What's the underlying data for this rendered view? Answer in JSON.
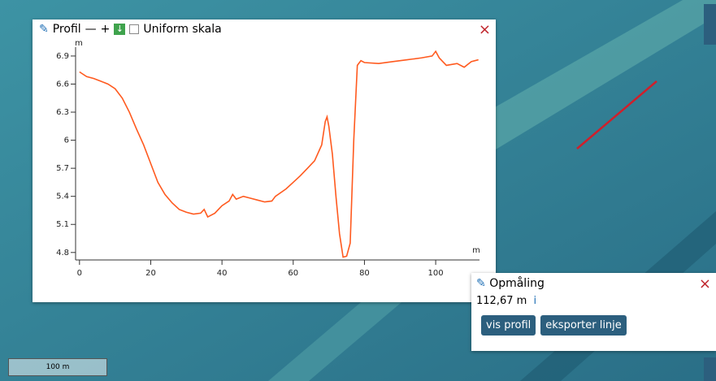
{
  "profile_panel": {
    "title": "Profil",
    "minus": "—",
    "plus": "+",
    "checkbox_label": "Uniform skala",
    "close": "×"
  },
  "chart_data": {
    "type": "line",
    "x_label": "m",
    "y_label": "m",
    "xlim": [
      -1.1,
      112.3
    ],
    "ylim": [
      4.72,
      6.995
    ],
    "xticks": [
      0,
      20,
      40,
      60,
      80,
      100
    ],
    "yticks": [
      4.8,
      5.1,
      5.4,
      5.7,
      6,
      6.3,
      6.6,
      6.9
    ],
    "series": [
      {
        "color": "#ff5a1f",
        "x": [
          0,
          2,
          4,
          6,
          8,
          10,
          12,
          14,
          16,
          18,
          20,
          22,
          24,
          26,
          28,
          30,
          32,
          34,
          35,
          36,
          38,
          40,
          42,
          43,
          44,
          46,
          48,
          50,
          52,
          54,
          55,
          58,
          60,
          62,
          64,
          66,
          68,
          69,
          69.5,
          70,
          71,
          72,
          73,
          74,
          75,
          76,
          77,
          78,
          79,
          80,
          84,
          88,
          92,
          96,
          99,
          100,
          101,
          103,
          106,
          108,
          110,
          112
        ],
        "values": [
          6.73,
          6.68,
          6.66,
          6.63,
          6.6,
          6.55,
          6.45,
          6.3,
          6.12,
          5.95,
          5.75,
          5.55,
          5.42,
          5.33,
          5.26,
          5.23,
          5.21,
          5.22,
          5.26,
          5.18,
          5.22,
          5.3,
          5.35,
          5.42,
          5.37,
          5.4,
          5.38,
          5.36,
          5.34,
          5.35,
          5.4,
          5.48,
          5.55,
          5.62,
          5.7,
          5.78,
          5.95,
          6.2,
          6.25,
          6.15,
          5.85,
          5.4,
          5,
          4.75,
          4.76,
          4.9,
          6,
          6.8,
          6.85,
          6.83,
          6.82,
          6.84,
          6.86,
          6.88,
          6.9,
          6.95,
          6.88,
          6.8,
          6.82,
          6.78,
          6.84,
          6.86
        ]
      }
    ]
  },
  "measurement_panel": {
    "title": "Opmåling",
    "distance": "112,67 m",
    "info": "i",
    "buttons": [
      "vis profil",
      "eksporter linje"
    ],
    "close": "×"
  },
  "scale_bar": "100 m"
}
